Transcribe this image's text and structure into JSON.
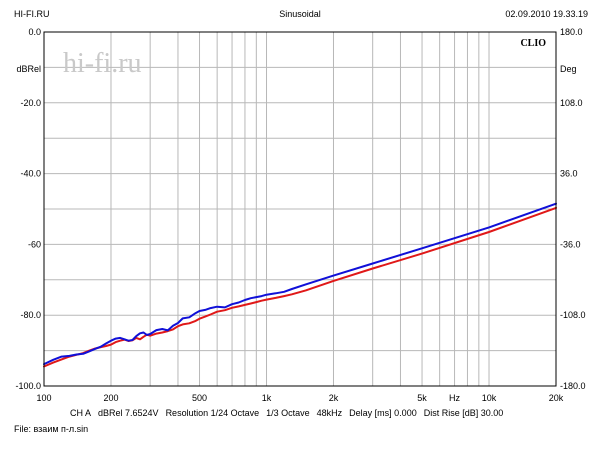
{
  "header": {
    "left": "HI-FI.RU",
    "center": "Sinusoidal",
    "right": "02.09.2010 19.33.19"
  },
  "watermark": "hi-fi.ru",
  "brand": "CLIO",
  "footer": {
    "channel": "CH A",
    "ref": "dBRel 7.6524V",
    "resolution": "Resolution 1/24 Octave",
    "smoothing": "1/3 Octave",
    "rate": "48kHz",
    "delay": "Delay [ms] 0.000",
    "dist_rise": "Dist Rise [dB] 30.00",
    "file": "File: взаим п-л.sin"
  },
  "colors": {
    "blue": "#1010d8",
    "red": "#e01818",
    "grid": "#b8b8b8"
  },
  "chart_data": {
    "type": "line",
    "xscale": "log",
    "xlim": [
      100,
      20000
    ],
    "ylim": [
      -100,
      0
    ],
    "y2lim": [
      -180,
      180
    ],
    "xlabel": "Hz",
    "ylabel": "dBRel",
    "y2label": "Deg",
    "grid": true,
    "x_ticks": [
      {
        "v": 100,
        "label": "100"
      },
      {
        "v": 200,
        "label": "200"
      },
      {
        "v": 500,
        "label": "500"
      },
      {
        "v": 1000,
        "label": "1k"
      },
      {
        "v": 2000,
        "label": "2k"
      },
      {
        "v": 5000,
        "label": "5k"
      },
      {
        "v": 10000,
        "label": "10k"
      },
      {
        "v": 20000,
        "label": "20k"
      }
    ],
    "y_ticks": [
      {
        "v": 0,
        "label": "0.0"
      },
      {
        "v": -20,
        "label": "-20.0"
      },
      {
        "v": -40,
        "label": "-40.0"
      },
      {
        "v": -60,
        "label": "-60"
      },
      {
        "v": -80,
        "label": "-80.0"
      },
      {
        "v": -100,
        "label": "-100.0"
      }
    ],
    "y2_ticks": [
      {
        "v": 180,
        "label": "180.0"
      },
      {
        "v": 108,
        "label": "108.0"
      },
      {
        "v": 36,
        "label": "36.0"
      },
      {
        "v": -36,
        "label": "-36.0"
      },
      {
        "v": -108,
        "label": "-108.0"
      },
      {
        "v": -180,
        "label": "-180.0"
      }
    ],
    "series": [
      {
        "color": "#1010d8",
        "x": [
          100,
          110,
          120,
          130,
          140,
          150,
          160,
          170,
          180,
          190,
          200,
          210,
          220,
          230,
          240,
          250,
          260,
          270,
          280,
          290,
          300,
          320,
          340,
          360,
          380,
          400,
          420,
          450,
          480,
          500,
          530,
          560,
          600,
          650,
          700,
          750,
          800,
          850,
          900,
          950,
          1000,
          1100,
          1200,
          1300,
          1500,
          2000,
          3000,
          5000,
          10000,
          20000
        ],
        "y": [
          -93.8,
          -92.6,
          -91.7,
          -91.5,
          -91.1,
          -90.9,
          -90.2,
          -89.5,
          -88.9,
          -88.0,
          -87.2,
          -86.6,
          -86.4,
          -86.8,
          -87.2,
          -87.0,
          -85.9,
          -85.1,
          -84.9,
          -85.6,
          -85.3,
          -84.2,
          -83.9,
          -84.3,
          -83.0,
          -82.2,
          -80.9,
          -80.6,
          -79.4,
          -78.8,
          -78.5,
          -78.0,
          -77.6,
          -77.8,
          -76.9,
          -76.4,
          -75.7,
          -75.2,
          -74.9,
          -74.6,
          -74.2,
          -73.8,
          -73.4,
          -72.6,
          -71.3,
          -68.8,
          -65.4,
          -61.1,
          -55.2,
          -48.5
        ]
      },
      {
        "color": "#e01818",
        "x": [
          100,
          110,
          120,
          130,
          140,
          150,
          160,
          170,
          180,
          190,
          200,
          210,
          220,
          230,
          240,
          250,
          260,
          270,
          280,
          290,
          300,
          320,
          340,
          360,
          380,
          400,
          420,
          450,
          480,
          500,
          530,
          560,
          600,
          650,
          700,
          750,
          800,
          850,
          900,
          950,
          1000,
          1100,
          1200,
          1300,
          1500,
          2000,
          3000,
          5000,
          10000,
          20000
        ],
        "y": [
          -94.5,
          -93.4,
          -92.5,
          -91.7,
          -91.2,
          -90.7,
          -90.0,
          -89.4,
          -89.0,
          -88.7,
          -88.3,
          -87.6,
          -87.2,
          -86.9,
          -87.3,
          -87.1,
          -86.4,
          -86.8,
          -86.1,
          -85.5,
          -85.8,
          -85.2,
          -84.9,
          -84.5,
          -84.0,
          -83.1,
          -82.6,
          -82.3,
          -81.6,
          -81.0,
          -80.4,
          -79.8,
          -79.0,
          -78.6,
          -77.9,
          -77.5,
          -77.1,
          -76.7,
          -76.3,
          -75.9,
          -75.6,
          -75.1,
          -74.6,
          -74.1,
          -73.0,
          -70.3,
          -66.8,
          -62.6,
          -56.5,
          -49.7
        ]
      }
    ]
  }
}
